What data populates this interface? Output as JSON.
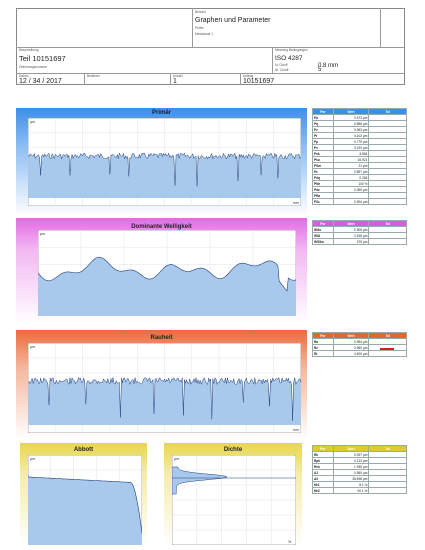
{
  "header": {
    "bereich_label": "Bereich",
    "title": "Graphen und Parameter",
    "pruefer_label": "Prüfer",
    "sub_label": "Messkanal 1",
    "beschreibung_label": "Beschreibung",
    "part_name": "Teil 10151697",
    "beschreibung_sub": "Zeichnungsnummer",
    "norm_label": "Messung Bedingungen",
    "norm": "ISO 4287",
    "cutoff_label": "λc Cutoff",
    "cutoff_value": "0.8 mm",
    "ls_label": "Nr. Cutoff",
    "ls_value": "5",
    "datum_label": "Datum",
    "datum": "12 / 34 / 2017",
    "bediener_label": "Bediener",
    "anzahl_label": "Anzahl",
    "anzahl": "1",
    "auftrag_label": "Auftrag",
    "auftrag": "10151697"
  },
  "panels": {
    "primaer": {
      "title": "Primär",
      "yunit": "µm",
      "xunit": "mm"
    },
    "welligkeit": {
      "title": "Dominante Welligkeit",
      "yunit": "µm",
      "xunit": "mm"
    },
    "rauheit": {
      "title": "Rauheit",
      "yunit": "µm",
      "xunit": "mm"
    },
    "abbott": {
      "title": "Abbott",
      "yunit": "µm",
      "xunit": "%"
    },
    "dichte": {
      "title": "Dichte",
      "yunit": "µm",
      "xunit": "%"
    }
  },
  "colors": {
    "primaer": "#3d8ee8",
    "welligkeit": "#e46ae4",
    "rauheit": "#ec6a3c",
    "abbott": "#e8d64e",
    "fill": "#a8c8ec",
    "line": "#1f3e7a"
  },
  "tables": {
    "primaer": {
      "headers": [
        "Par",
        "Wert",
        "Tol"
      ],
      "rows": [
        [
          "Pa",
          "0.573 µm",
          ""
        ],
        [
          "Pq",
          "0.856 µm",
          ""
        ],
        [
          "Pz",
          "3.963 µm",
          ""
        ],
        [
          "Pt",
          "4.102 µm",
          ""
        ],
        [
          "Pp",
          "0.775 µm",
          ""
        ],
        [
          "Pv",
          "3.193 µm",
          ""
        ],
        [
          "Psk",
          "-3.854",
          ""
        ],
        [
          "Pku",
          "16.921",
          ""
        ],
        [
          "PSm",
          "21 µm",
          ""
        ],
        [
          "Pc",
          "0.897 µm",
          ""
        ],
        [
          "Pdq",
          "0.265",
          ""
        ],
        [
          "PMr",
          "100 %",
          ""
        ],
        [
          "Pdc",
          "0.365 µm",
          ""
        ],
        [
          "PRa",
          "",
          ""
        ],
        [
          "Pδc",
          "0.904 µm",
          ""
        ]
      ]
    },
    "welligkeit": {
      "headers": [
        "Par",
        "Wert",
        "Tol"
      ],
      "rows": [
        [
          "WSa",
          "0.505 µm",
          ""
        ],
        [
          "WSt",
          "0.518 µm",
          ""
        ],
        [
          "WSSm",
          "475 µm",
          ""
        ]
      ]
    },
    "rauheit": {
      "headers": [
        "Par",
        "Wert",
        "Tol"
      ],
      "rows": [
        [
          "Ra",
          "0.954 µm",
          ""
        ],
        [
          "Rz",
          "3.960 µm",
          ""
        ],
        [
          "Rt",
          "4.600 µm",
          ""
        ]
      ]
    },
    "abbott": {
      "headers": [
        "Par",
        "Wert",
        "Tol"
      ],
      "rows": [
        [
          "Rk",
          "0.497 µm",
          ""
        ],
        [
          "Rpk",
          "0.123 µm",
          ""
        ],
        [
          "Rvk",
          "1.935 µm",
          ""
        ],
        [
          "A1",
          "0.560 µm",
          ""
        ],
        [
          "A2",
          "36.698 µm",
          ""
        ],
        [
          "Mr1",
          "8.1 %",
          ""
        ],
        [
          "Mr2",
          "90.1 %",
          ""
        ]
      ]
    }
  }
}
